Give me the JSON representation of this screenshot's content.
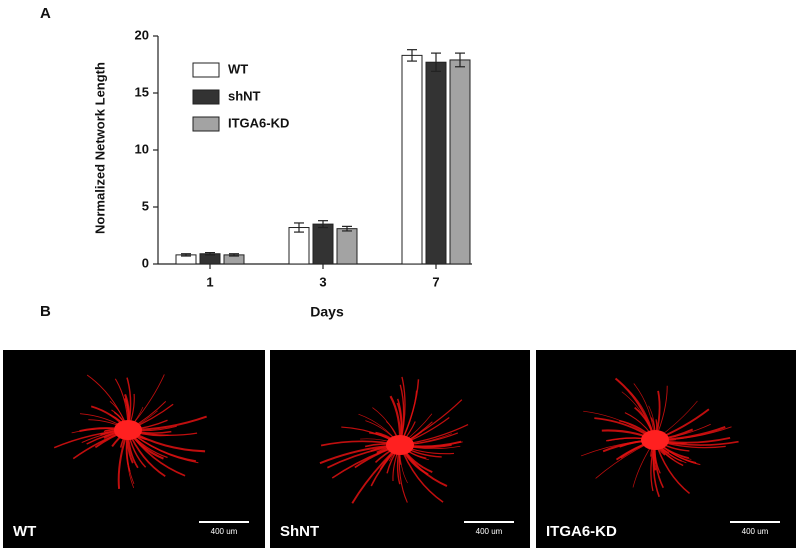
{
  "panel_labels": [
    "A",
    "B"
  ],
  "chart_data": {
    "type": "bar",
    "y_label": "Normalized Network Length",
    "x_label": "Days",
    "categories": [
      "1",
      "3",
      "7"
    ],
    "series": [
      {
        "name": "WT",
        "color": "#ffffff",
        "values": [
          0.8,
          3.2,
          18.3
        ],
        "errors": [
          0.1,
          0.4,
          0.5
        ]
      },
      {
        "name": "shNT",
        "color": "#333333",
        "values": [
          0.9,
          3.5,
          17.7
        ],
        "errors": [
          0.1,
          0.3,
          0.8
        ]
      },
      {
        "name": "ITGA6-KD",
        "color": "#a3a3a3",
        "values": [
          0.8,
          3.1,
          17.9
        ],
        "errors": [
          0.1,
          0.2,
          0.6
        ]
      }
    ],
    "ylim": [
      0,
      20
    ],
    "yticks": [
      0,
      5,
      10,
      15,
      20
    ],
    "legend": "upper-left"
  },
  "images": [
    {
      "label": "WT",
      "scale_bar": "400 um"
    },
    {
      "label": "ShNT",
      "scale_bar": "400 um"
    },
    {
      "label": "ITGA6-KD",
      "scale_bar": "400 um"
    }
  ]
}
